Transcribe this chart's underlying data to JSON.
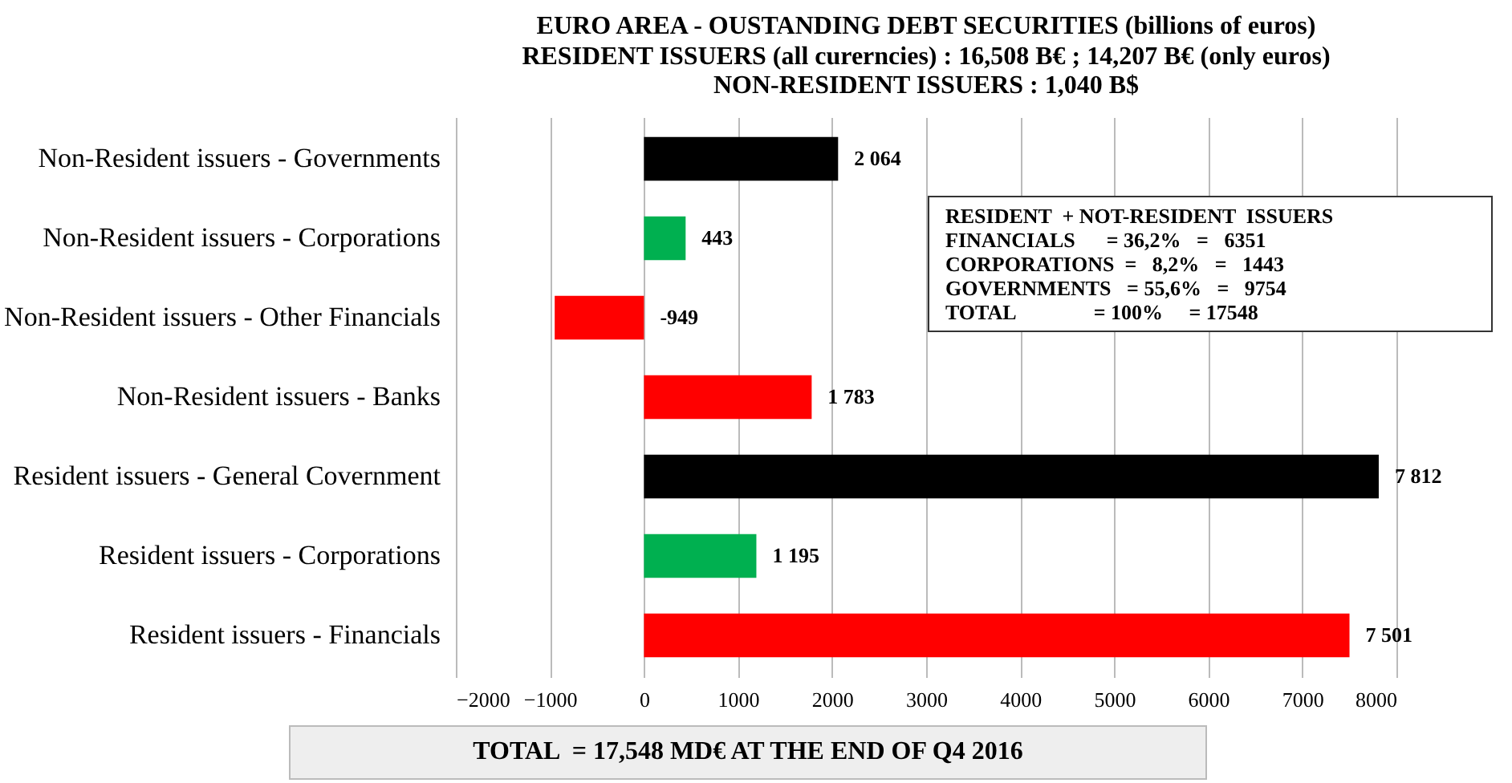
{
  "chart_data": {
    "type": "bar",
    "orientation": "horizontal",
    "title": "EURO AREA - OUSTANDING DEBT SECURITIES (billions of euros)",
    "subtitle": "RESIDENT ISSUERS (all curerncies) : 16,508 B€ ; 14,207 B€ (only euros)\nNON-RESIDENT ISSUERS : 1,040 B$",
    "categories": [
      "Non-Resident issuers - Governments",
      "Non-Resident issuers - Corporations",
      "Non-Resident issuers - Other Financials",
      "Non-Resident issuers - Banks",
      "Resident issuers - General Covernment",
      "Resident issuers - Corporations",
      "Resident issuers - Financials"
    ],
    "values": [
      2064,
      443,
      -949,
      1783,
      7812,
      1195,
      7501
    ],
    "colors": [
      "#000000",
      "#00b050",
      "#ff0000",
      "#ff0000",
      "#000000",
      "#00b050",
      "#ff0000"
    ],
    "value_labels": [
      "2 064",
      "443",
      "-949",
      "1 783",
      "7 812",
      "1 195",
      "7 501"
    ],
    "xlim": [
      -2000,
      8000
    ],
    "xticks": [
      -2000,
      -1000,
      0,
      1000,
      2000,
      3000,
      4000,
      5000,
      6000,
      7000,
      8000
    ],
    "grid": "x",
    "annotations": [
      "RESIDENT  + NOT-RESIDENT  ISSUERS",
      "FINANCIALS      = 36,2%   =   6351",
      "CORPORATIONS  =   8,2%   =   1443",
      "GOVERNMENTS   = 55,6%   =   9754",
      "TOTAL               = 100%     = 17548",
      "TOTAL  = 17,548 MD€ AT THE END OF Q4 2016"
    ]
  }
}
